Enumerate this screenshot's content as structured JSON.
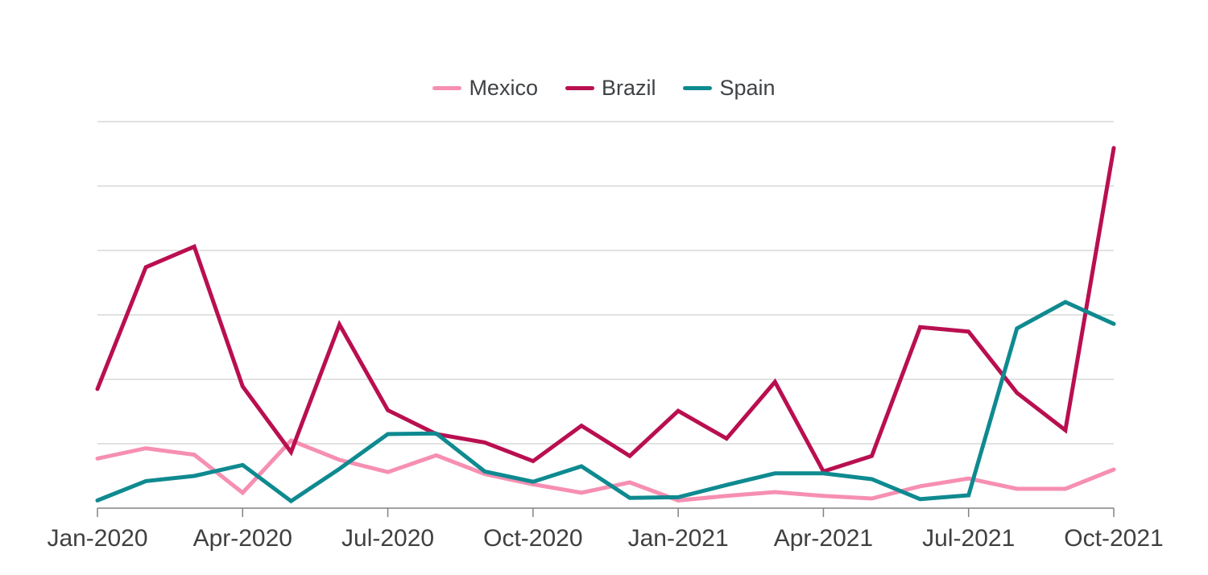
{
  "page": {
    "background_color": "#ffffff",
    "text_color": "#404040"
  },
  "legend": {
    "items": [
      {
        "label": "Mexico",
        "color": "#f68fb2"
      },
      {
        "label": "Brazil",
        "color": "#b90f50"
      },
      {
        "label": "Spain",
        "color": "#0e8a90"
      }
    ]
  },
  "axis_style": {
    "gridline_color": "#d9d9d9",
    "axis_color": "#828282",
    "tick_color": "#828282",
    "label_color": "#404040"
  },
  "chart_data": {
    "type": "line",
    "title": "",
    "xlabel": "",
    "ylabel": "",
    "x": [
      "Jan-2020",
      "Feb-2020",
      "Mar-2020",
      "Apr-2020",
      "May-2020",
      "Jun-2020",
      "Jul-2020",
      "Aug-2020",
      "Sep-2020",
      "Oct-2020",
      "Nov-2020",
      "Dec-2020",
      "Jan-2021",
      "Feb-2021",
      "Mar-2021",
      "Apr-2021",
      "May-2021",
      "Jun-2021",
      "Jul-2021",
      "Aug-2021",
      "Sep-2021",
      "Oct-2021"
    ],
    "x_tick_indices": [
      0,
      3,
      6,
      9,
      12,
      15,
      18,
      21
    ],
    "x_tick_labels": [
      "Jan-2020",
      "Apr-2020",
      "Jul-2020",
      "Oct-2020",
      "Jan-2021",
      "Apr-2021",
      "Jul-2021",
      "Oct-2021"
    ],
    "ylim": [
      0,
      600
    ],
    "y_gridline_step": 100,
    "y_axis_labels_visible": false,
    "grid": true,
    "legend_position": "top-center",
    "series": [
      {
        "name": "Mexico",
        "color": "#f68fb2",
        "values": [
          77,
          93,
          83,
          24,
          105,
          75,
          56,
          82,
          53,
          37,
          24,
          40,
          12,
          19,
          25,
          19,
          15,
          34,
          46,
          30,
          30,
          60
        ]
      },
      {
        "name": "Brazil",
        "color": "#b90f50",
        "values": [
          185,
          374,
          406,
          189,
          87,
          285,
          152,
          115,
          102,
          73,
          128,
          81,
          151,
          108,
          196,
          57,
          81,
          281,
          274,
          179,
          121,
          559
        ]
      },
      {
        "name": "Spain",
        "color": "#0e8a90",
        "values": [
          12,
          42,
          50,
          67,
          11,
          61,
          115,
          116,
          57,
          41,
          65,
          16,
          17,
          36,
          54,
          54,
          45,
          14,
          20,
          279,
          320,
          286
        ]
      }
    ]
  }
}
